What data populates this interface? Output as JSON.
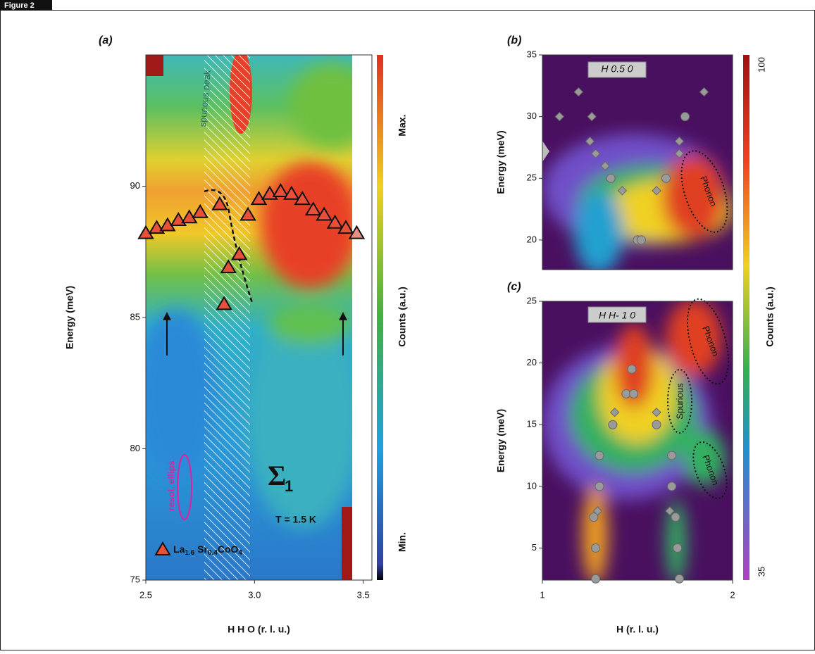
{
  "figure_label": "Figure 2",
  "colorbar_bc": {
    "label": "Counts (a.u.)",
    "ticks": [
      100,
      35
    ]
  },
  "chart_data": [
    {
      "type": "scatter",
      "panel_label": "(a)",
      "xlabel": "H H O (r. l. u.)",
      "ylabel": "Energy (meV)",
      "xlim": [
        2.5,
        3.54
      ],
      "ylim": [
        75,
        95
      ],
      "xticks": [
        2.5,
        {
          "value": 3,
          "label": "3.0"
        },
        3.5
      ],
      "yticks": [
        75,
        80,
        85,
        90
      ],
      "colorbar_label": "Counts (a.u.)",
      "colorbar_ticks": [
        "Max.",
        "Min."
      ],
      "annotations": [
        "spurious peak",
        "resol. ellips",
        "T = 1.5 K"
      ],
      "symbol": "Σ",
      "symbol_sub": "1",
      "series": [
        {
          "name": [
            "La",
            "1.6",
            " Sr",
            "0.4",
            "CoO",
            "4"
          ],
          "marker": "triangle",
          "color": "#e8503a",
          "x": [
            2.5,
            2.55,
            2.6,
            2.65,
            2.7,
            2.75,
            2.84,
            2.86,
            2.88,
            2.93,
            2.97,
            3.02,
            3.07,
            3.12,
            3.17,
            3.22,
            3.27,
            3.32,
            3.37,
            3.42,
            3.47
          ],
          "values": [
            88.2,
            88.4,
            88.5,
            88.7,
            88.8,
            89.0,
            89.3,
            85.5,
            86.9,
            87.4,
            88.9,
            89.5,
            89.7,
            89.8,
            89.7,
            89.5,
            89.1,
            88.9,
            88.6,
            88.4,
            88.2
          ],
          "marker_colors": [
            "#e8503a",
            "#e8503a",
            "#e8503a",
            "#e8503a",
            "#e8503a",
            "#e8503a",
            "#e8503a",
            "#e8503a",
            "#e8503a",
            "#e8503a",
            "#e8503a",
            "#e8503a",
            "#e8503a",
            "#e8503a",
            "#e8503a",
            "#e8503a",
            "#e8503a",
            "#e8503a",
            "#e8503a",
            "#e8503a",
            "#e89080"
          ]
        }
      ]
    },
    {
      "type": "scatter",
      "panel_label": "(b)",
      "ylabel": "Energy (meV)",
      "inset_label": "H 0.5 0",
      "xlim": [
        1,
        2
      ],
      "ylim": [
        17.6,
        35
      ],
      "yticks": [
        20,
        25,
        30,
        35
      ],
      "annotations": [
        "Phonon"
      ],
      "series": [
        {
          "marker": "diamond",
          "color": "#9a9a9a",
          "x": [
            1.09,
            1.19,
            1.25,
            1.26,
            1.28,
            1.33,
            1.42,
            1.6,
            1.72,
            1.72,
            1.85
          ],
          "values": [
            30,
            32,
            28,
            30,
            27,
            26,
            24,
            24,
            27,
            28,
            32
          ]
        },
        {
          "marker": "circle",
          "color": "#9a9a9a",
          "x": [
            1.36,
            1.5,
            1.52,
            1.65,
            1.75
          ],
          "values": [
            25,
            20,
            20,
            25,
            30
          ]
        }
      ]
    },
    {
      "type": "scatter",
      "panel_label": "(c)",
      "xlabel": "H (r. l. u.)",
      "ylabel": "Energy (meV)",
      "inset_label": "H H- 1 0",
      "xlim": [
        1,
        2
      ],
      "ylim": [
        2.4,
        25
      ],
      "xticks": [
        1,
        2
      ],
      "yticks": [
        5,
        10,
        15,
        20,
        25
      ],
      "annotations": [
        "Phonon",
        "Spurious",
        "Phonon"
      ],
      "series": [
        {
          "marker": "diamond",
          "color": "#9a9a9a",
          "x": [
            1.29,
            1.38,
            1.6,
            1.67
          ],
          "values": [
            8,
            16,
            16,
            8
          ]
        },
        {
          "marker": "circle",
          "color": "#9a9a9a",
          "x": [
            1.28,
            1.28,
            1.27,
            1.3,
            1.3,
            1.37,
            1.44,
            1.48,
            1.47,
            1.6,
            1.68,
            1.68,
            1.7,
            1.71,
            1.72
          ],
          "values": [
            2.5,
            5,
            7.5,
            10,
            12.5,
            15,
            17.5,
            17.5,
            19.5,
            15,
            12.5,
            10,
            7.5,
            5,
            2.5
          ]
        }
      ]
    }
  ]
}
